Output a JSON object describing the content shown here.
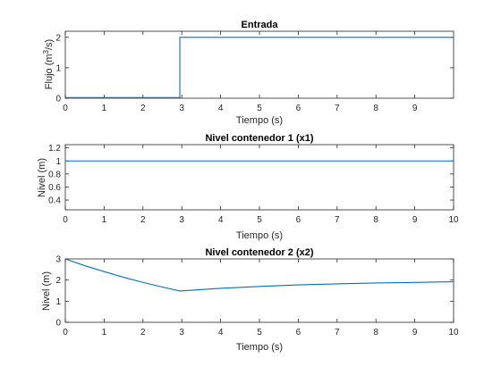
{
  "chart_data": [
    {
      "type": "line",
      "title": "Entrada",
      "xlabel": "Tiempo (s)",
      "ylabel": "Flujo (m",
      "ylabel_sup": "3",
      "ylabel_tail": "/s)",
      "xlim": [
        0,
        10
      ],
      "ylim": [
        0,
        2.2
      ],
      "xticks": [
        "0",
        "1",
        "2",
        "3",
        "4",
        "5",
        "6",
        "7",
        "8",
        "9"
      ],
      "yticks": [
        "0",
        "1",
        "2"
      ],
      "color": "#0072BD",
      "x": [
        0,
        2.95,
        2.95,
        10
      ],
      "y": [
        0.02,
        0.02,
        2,
        2
      ]
    },
    {
      "type": "line",
      "title": "Nivel contenedor 1 (x1)",
      "xlabel": "Tiempo (s)",
      "ylabel": "Nivel (m)",
      "xlim": [
        0,
        10
      ],
      "ylim": [
        0.25,
        1.25
      ],
      "xticks": [
        "0",
        "1",
        "2",
        "3",
        "4",
        "5",
        "6",
        "7",
        "8",
        "9",
        "10"
      ],
      "yticks": [
        "0.4",
        "0.6",
        "0.8",
        "1",
        "1.2"
      ],
      "color": "#0072BD",
      "x": [
        0,
        10
      ],
      "y": [
        1,
        1
      ]
    },
    {
      "type": "line",
      "title": "Nivel contenedor 2 (x2)",
      "xlabel": "Tiempo (s)",
      "ylabel": "Nivel (m)",
      "xlim": [
        0,
        10
      ],
      "ylim": [
        0,
        3
      ],
      "xticks": [
        "0",
        "1",
        "2",
        "3",
        "4",
        "5",
        "6",
        "7",
        "8",
        "9",
        "10"
      ],
      "yticks": [
        "0",
        "1",
        "2",
        "3"
      ],
      "color": "#0072BD",
      "x": [
        0,
        0.5,
        1,
        1.5,
        2,
        2.5,
        2.95,
        3.5,
        4,
        5,
        6,
        7,
        8,
        9,
        10
      ],
      "y": [
        3,
        2.68,
        2.4,
        2.13,
        1.89,
        1.67,
        1.48,
        1.55,
        1.61,
        1.7,
        1.77,
        1.82,
        1.86,
        1.89,
        1.92
      ]
    }
  ]
}
